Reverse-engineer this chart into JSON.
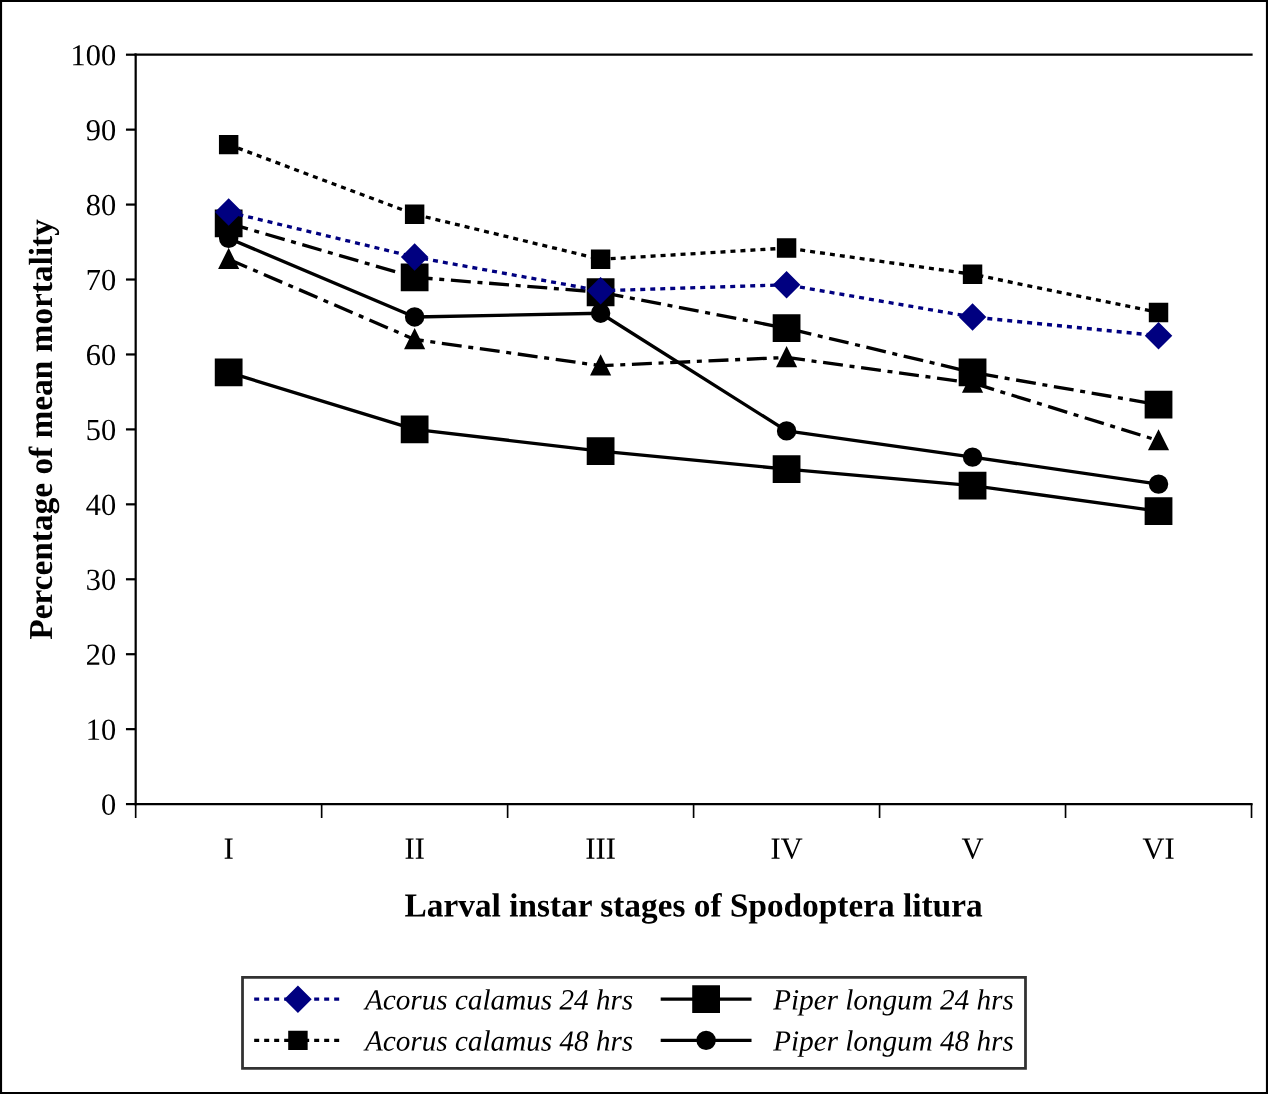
{
  "chart_data": {
    "type": "line",
    "xlabel": "Larval instar stages of Spodoptera litura",
    "ylabel": "Percentage of mean mortality",
    "categories": [
      "I",
      "II",
      "III",
      "IV",
      "V",
      "VI"
    ],
    "ylim": [
      0,
      100
    ],
    "yticks": [
      0,
      10,
      20,
      30,
      40,
      50,
      60,
      70,
      80,
      90,
      100
    ],
    "grid": false,
    "legend": "bottom",
    "series": [
      {
        "name": "Acorus calamus 24 hrs",
        "color": "#000080",
        "marker": "diamond",
        "line_style": "dotted",
        "values": [
          79,
          73,
          68.5,
          69.3,
          65,
          62.5
        ]
      },
      {
        "name": "Acorus calamus 48 hrs",
        "color": "#000000",
        "marker": "square",
        "line_style": "dotted",
        "values": [
          88,
          78.7,
          72.7,
          74.2,
          70.7,
          65.6
        ]
      },
      {
        "color": "#000000",
        "marker": "triangle",
        "line_style": "dashed",
        "values": [
          72.7,
          62,
          58.5,
          59.6,
          56.2,
          48.5
        ]
      },
      {
        "color": "#000000",
        "marker": "square",
        "line_style": "dashed",
        "values": [
          77.5,
          70.3,
          68.3,
          63.5,
          57.6,
          53.3
        ]
      },
      {
        "name": "Piper longum 24 hrs",
        "color": "#000000",
        "marker": "square",
        "line_style": "solid",
        "values": [
          57.6,
          50,
          47.1,
          44.7,
          42.5,
          39.1
        ]
      },
      {
        "name": "Piper longum 48 hrs",
        "color": "#000000",
        "marker": "circle",
        "line_style": "solid",
        "values": [
          75.5,
          65,
          65.5,
          49.8,
          46.3,
          42.7
        ]
      }
    ]
  }
}
